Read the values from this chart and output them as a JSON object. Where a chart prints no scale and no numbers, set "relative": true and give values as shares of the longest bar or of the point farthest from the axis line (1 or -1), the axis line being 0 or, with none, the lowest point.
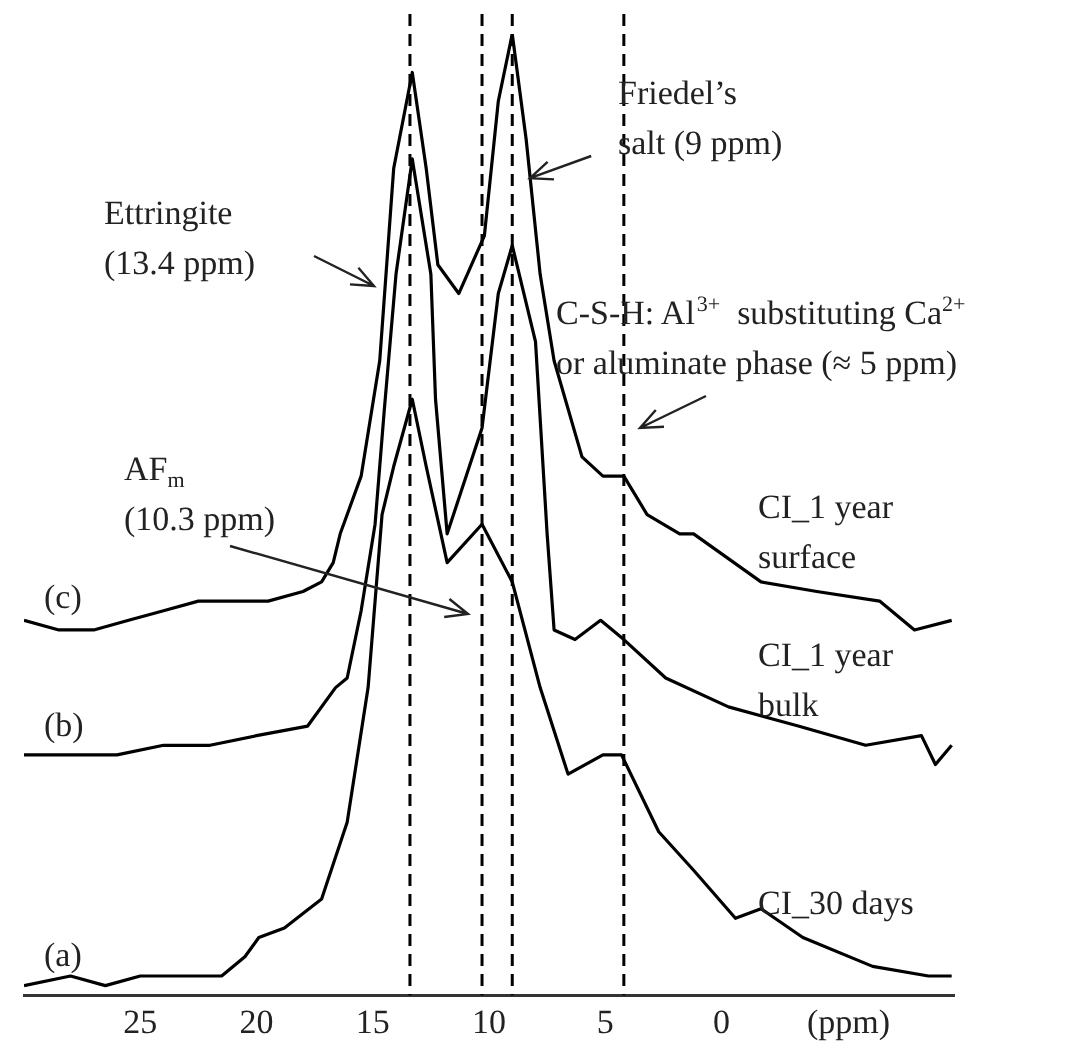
{
  "chart_data": {
    "type": "line",
    "relative": true,
    "grid": false,
    "xlabel": "(ppm)",
    "xlim": [
      30,
      -10
    ],
    "xticks": [
      25,
      20,
      15,
      10,
      5,
      0
    ],
    "series": [
      {
        "name": "CI_1 year surface",
        "color": "#000000",
        "x": [
          30,
          28.5,
          27,
          25.5,
          24,
          22.5,
          21,
          19.5,
          18,
          17.2,
          16.7,
          16.4,
          15.5,
          14.7,
          14.1,
          13.3,
          12.7,
          12.2,
          11.3,
          10.2,
          9.6,
          9.0,
          8.4,
          7.8,
          7.2,
          6.0,
          5.1,
          4.2,
          3.2,
          1.8,
          1.2,
          -1.7,
          -4.1,
          -6.8,
          -8.3,
          -9.9
        ],
        "values": [
          0.39,
          0.38,
          0.38,
          0.39,
          0.4,
          0.41,
          0.41,
          0.41,
          0.42,
          0.43,
          0.45,
          0.48,
          0.54,
          0.66,
          0.86,
          0.96,
          0.86,
          0.76,
          0.73,
          0.79,
          0.93,
          1.0,
          0.89,
          0.75,
          0.66,
          0.56,
          0.54,
          0.54,
          0.5,
          0.48,
          0.48,
          0.43,
          0.42,
          0.41,
          0.38,
          0.39
        ]
      },
      {
        "name": "CI_1 year bulk",
        "color": "#000000",
        "x": [
          30,
          28,
          26,
          24,
          22,
          20,
          17.8,
          16.6,
          16.1,
          15.5,
          14.9,
          14.5,
          14.0,
          13.3,
          12.5,
          12.3,
          11.8,
          10.3,
          9.6,
          9.0,
          8.0,
          7.5,
          7.2,
          6.3,
          5.2,
          4.2,
          2.4,
          -0.3,
          -3.3,
          -6.2,
          -8.6,
          -9.2,
          -9.9
        ],
        "values": [
          0.25,
          0.25,
          0.25,
          0.26,
          0.26,
          0.27,
          0.28,
          0.32,
          0.33,
          0.4,
          0.49,
          0.61,
          0.75,
          0.87,
          0.75,
          0.62,
          0.48,
          0.59,
          0.73,
          0.78,
          0.68,
          0.48,
          0.38,
          0.37,
          0.39,
          0.37,
          0.33,
          0.3,
          0.28,
          0.26,
          0.27,
          0.24,
          0.26
        ]
      },
      {
        "name": "CI_30 days",
        "color": "#000000",
        "x": [
          30,
          28,
          26.5,
          25,
          23,
          21.5,
          20.5,
          19.9,
          18.8,
          17.2,
          16.1,
          15.2,
          14.6,
          14.1,
          13.3,
          12.7,
          11.8,
          10.3,
          9.0,
          7.8,
          6.6,
          5.1,
          4.3,
          2.7,
          1.2,
          -0.6,
          -1.7,
          -3.5,
          -6.5,
          -8.9,
          -9.9
        ],
        "values": [
          0.01,
          0.02,
          0.01,
          0.02,
          0.02,
          0.02,
          0.04,
          0.06,
          0.07,
          0.1,
          0.18,
          0.32,
          0.5,
          0.55,
          0.62,
          0.55,
          0.45,
          0.49,
          0.43,
          0.32,
          0.23,
          0.25,
          0.25,
          0.17,
          0.13,
          0.08,
          0.09,
          0.06,
          0.03,
          0.02,
          0.02
        ]
      }
    ],
    "ref_lines": [
      {
        "axis": "x",
        "value": 13.4,
        "label": null,
        "color": "#000000",
        "line_style": "dashed"
      },
      {
        "axis": "x",
        "value": 10.3,
        "label": null,
        "color": "#000000",
        "line_style": "dashed"
      },
      {
        "axis": "x",
        "value": 9,
        "label": null,
        "color": "#000000",
        "line_style": "dashed"
      },
      {
        "axis": "x",
        "value": 4.2,
        "label": null,
        "color": "#000000",
        "line_style": "dashed"
      }
    ],
    "annotations": [
      "Ettringite (13.4 ppm)",
      {
        "text": "Friedel’s salt (9 ppm)",
        "x": 8.2,
        "y": 0.85
      },
      "C-S-H: Al$^{3+}$  substituting Ca$^{2+}$ or aluminate phase (≈ 5 ppm)",
      "AF$_{m}$ (10.3 ppm)",
      "(c)",
      "(b)",
      "(a)"
    ]
  }
}
